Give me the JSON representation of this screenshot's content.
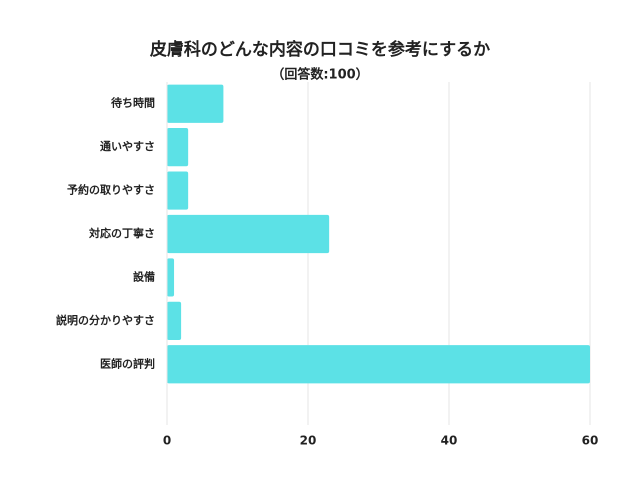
{
  "chart_data": {
    "type": "bar",
    "orientation": "horizontal",
    "title": "皮膚科のどんな内容の口コミを参考にするか",
    "subtitle": "（回答数:100）",
    "categories": [
      "待ち時間",
      "通いやすさ",
      "予約の取りやすさ",
      "対応の丁寧さ",
      "設備",
      "説明の分かりやすさ",
      "医師の評判"
    ],
    "values": [
      8,
      3,
      3,
      23,
      1,
      2,
      60
    ],
    "color": "#5ce1e6",
    "xlim": [
      0,
      60
    ],
    "xticks": [
      0,
      20,
      40,
      60
    ],
    "grid": true
  }
}
